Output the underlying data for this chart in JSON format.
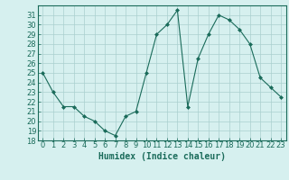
{
  "x": [
    0,
    1,
    2,
    3,
    4,
    5,
    6,
    7,
    8,
    9,
    10,
    11,
    12,
    13,
    14,
    15,
    16,
    17,
    18,
    19,
    20,
    21,
    22,
    23
  ],
  "y": [
    25,
    23,
    21.5,
    21.5,
    20.5,
    20,
    19,
    18.5,
    20.5,
    21,
    25,
    29,
    30,
    31.5,
    21.5,
    26.5,
    29,
    31,
    30.5,
    29.5,
    28,
    24.5,
    23.5,
    22.5
  ],
  "line_color": "#1a6b5a",
  "marker": "D",
  "marker_size": 2,
  "bg_color": "#d6f0ef",
  "grid_color": "#aacfcf",
  "xlabel": "Humidex (Indice chaleur)",
  "ylim": [
    18,
    32
  ],
  "yticks": [
    18,
    19,
    20,
    21,
    22,
    23,
    24,
    25,
    26,
    27,
    28,
    29,
    30,
    31
  ],
  "xlim": [
    -0.5,
    23.5
  ],
  "xticks": [
    0,
    1,
    2,
    3,
    4,
    5,
    6,
    7,
    8,
    9,
    10,
    11,
    12,
    13,
    14,
    15,
    16,
    17,
    18,
    19,
    20,
    21,
    22,
    23
  ],
  "tick_color": "#1a6b5a",
  "label_color": "#1a6b5a",
  "font_size": 6,
  "xlabel_fontsize": 7
}
